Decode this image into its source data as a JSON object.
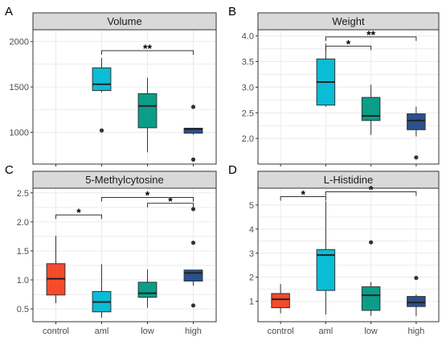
{
  "chart_data": [
    {
      "type": "box",
      "panel_label": "A",
      "title": "Volume",
      "categories": [
        "control",
        "aml",
        "low",
        "high"
      ],
      "show_x_tick_labels": false,
      "ylim": [
        650,
        2130
      ],
      "yticks": [
        1000,
        1500,
        2000
      ],
      "grid": true,
      "boxes": [
        null,
        {
          "category": "aml",
          "color": "#0bbcd6",
          "min": 1440,
          "q1": 1460,
          "median": 1530,
          "q3": 1710,
          "max": 1820,
          "outliers": [
            1020
          ]
        },
        {
          "category": "low",
          "color": "#0a9e89",
          "min": 780,
          "q1": 1050,
          "median": 1290,
          "q3": 1425,
          "max": 1600,
          "outliers": []
        },
        {
          "category": "high",
          "color": "#2a508e",
          "min": 975,
          "q1": 990,
          "median": 1035,
          "q3": 1045,
          "max": 1045,
          "outliers": [
            1280,
            700
          ]
        }
      ],
      "significance": [
        {
          "from": "aml",
          "to": "high",
          "y": 1900,
          "label": "**"
        }
      ]
    },
    {
      "type": "box",
      "panel_label": "B",
      "title": "Weight",
      "categories": [
        "control",
        "aml",
        "low",
        "high"
      ],
      "show_x_tick_labels": false,
      "ylim": [
        1.5,
        4.12
      ],
      "yticks": [
        2.0,
        2.5,
        3.0,
        3.5,
        4.0
      ],
      "grid": true,
      "boxes": [
        null,
        {
          "category": "aml",
          "color": "#0bbcd6",
          "min": 2.62,
          "q1": 2.65,
          "median": 3.1,
          "q3": 3.55,
          "max": 3.85,
          "outliers": []
        },
        {
          "category": "low",
          "color": "#0a9e89",
          "min": 2.07,
          "q1": 2.35,
          "median": 2.44,
          "q3": 2.8,
          "max": 3.05,
          "outliers": []
        },
        {
          "category": "high",
          "color": "#2a508e",
          "min": 2.04,
          "q1": 2.17,
          "median": 2.35,
          "q3": 2.48,
          "max": 2.62,
          "outliers": [
            1.63
          ]
        }
      ],
      "significance": [
        {
          "from": "aml",
          "to": "high",
          "y": 3.98,
          "label": "**"
        },
        {
          "from": "aml",
          "to": "low",
          "y": 3.8,
          "label": "*"
        }
      ]
    },
    {
      "type": "box",
      "panel_label": "C",
      "title": "5-Methylcytosine",
      "categories": [
        "control",
        "aml",
        "low",
        "high"
      ],
      "show_x_tick_labels": true,
      "ylim": [
        0.28,
        2.58
      ],
      "yticks": [
        0.5,
        1.0,
        1.5,
        2.0,
        2.5
      ],
      "grid": true,
      "boxes": [
        {
          "category": "control",
          "color": "#f44b2b",
          "min": 0.6,
          "q1": 0.74,
          "median": 1.02,
          "q3": 1.28,
          "max": 1.76,
          "outliers": []
        },
        {
          "category": "aml",
          "color": "#0bbcd6",
          "min": 0.35,
          "q1": 0.45,
          "median": 0.62,
          "q3": 0.8,
          "max": 1.27,
          "outliers": []
        },
        {
          "category": "low",
          "color": "#0a9e89",
          "min": 0.52,
          "q1": 0.7,
          "median": 0.77,
          "q3": 0.96,
          "max": 1.18,
          "outliers": []
        },
        {
          "category": "high",
          "color": "#2a508e",
          "min": 0.9,
          "q1": 0.98,
          "median": 1.12,
          "q3": 1.17,
          "max": 1.17,
          "outliers": [
            2.22,
            1.64,
            0.56
          ]
        }
      ],
      "significance": [
        {
          "from": "control",
          "to": "aml",
          "y": 2.12,
          "label": "*"
        },
        {
          "from": "aml",
          "to": "high",
          "y": 2.42,
          "label": "*"
        },
        {
          "from": "low",
          "to": "high",
          "y": 2.32,
          "label": "*"
        }
      ]
    },
    {
      "type": "box",
      "panel_label": "D",
      "title": "L-Histidine",
      "categories": [
        "control",
        "aml",
        "low",
        "high"
      ],
      "show_x_tick_labels": true,
      "ylim": [
        0.15,
        5.7
      ],
      "yticks": [
        1,
        2,
        3,
        4,
        5
      ],
      "grid": true,
      "boxes": [
        {
          "category": "control",
          "color": "#f44b2b",
          "min": 0.5,
          "q1": 0.73,
          "median": 1.08,
          "q3": 1.32,
          "max": 1.72,
          "outliers": []
        },
        {
          "category": "aml",
          "color": "#0bbcd6",
          "min": 0.45,
          "q1": 1.45,
          "median": 2.92,
          "q3": 3.15,
          "max": 5.15,
          "outliers": []
        },
        {
          "category": "low",
          "color": "#0a9e89",
          "min": 0.4,
          "q1": 0.62,
          "median": 1.25,
          "q3": 1.6,
          "max": 1.8,
          "outliers": [
            3.45
          ]
        },
        {
          "category": "high",
          "color": "#2a508e",
          "min": 0.38,
          "q1": 0.78,
          "median": 0.95,
          "q3": 1.2,
          "max": 1.28,
          "outliers": [
            1.97
          ]
        }
      ],
      "significance": [
        {
          "from": "control",
          "to": "aml",
          "y": 5.35,
          "label": "*"
        },
        {
          "from": "aml",
          "to": "high",
          "y": 5.55,
          "label": "*"
        }
      ]
    }
  ]
}
